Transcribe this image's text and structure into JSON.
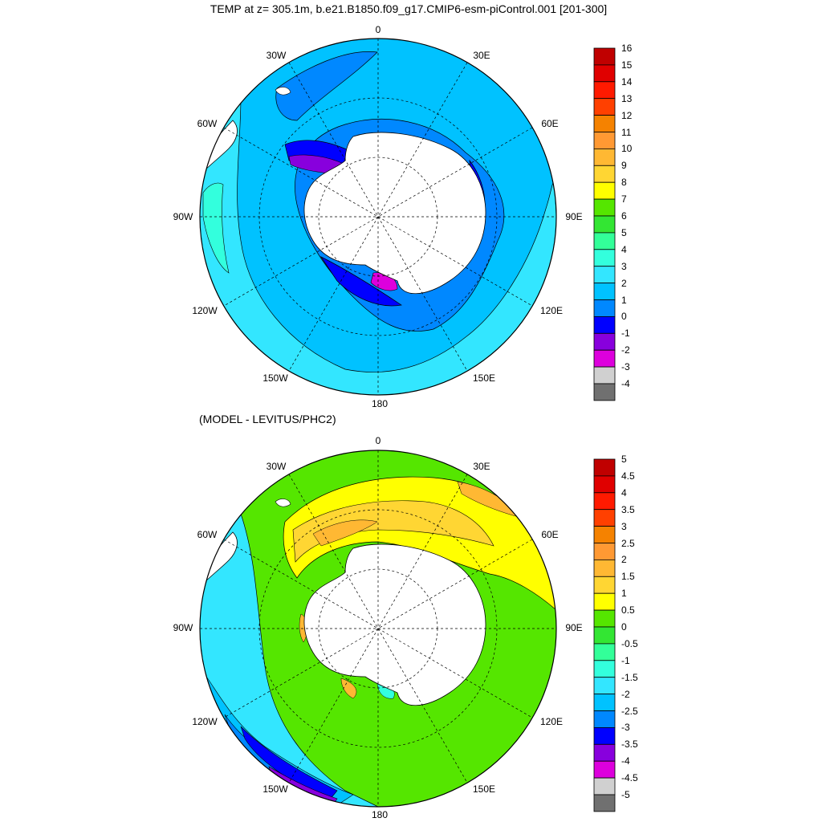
{
  "titles": {
    "top": "TEMP at z= 305.1m, b.e21.B1850.f09_g17.CMIP6-esm-piControl.001 [201-300]",
    "bottom": "(MODEL - LEVITUS/PHC2)"
  },
  "map_labels": {
    "lon_0": "0",
    "lon_30e": "30E",
    "lon_60e": "60E",
    "lon_90e": "90E",
    "lon_120e": "120E",
    "lon_150e": "150E",
    "lon_180": "180",
    "lon_150w": "150W",
    "lon_120w": "120W",
    "lon_90w": "90W",
    "lon_60w": "60W",
    "lon_30w": "30W"
  },
  "colorbar_top": {
    "labels": [
      "16",
      "15",
      "14",
      "13",
      "12",
      "11",
      "10",
      "9",
      "8",
      "7",
      "6",
      "5",
      "4",
      "3",
      "2",
      "1",
      "0",
      "-1",
      "-2",
      "-3",
      "-4"
    ],
    "colors": [
      "#c00000",
      "#e00000",
      "#ff1a00",
      "#ff4000",
      "#f58200",
      "#ff9933",
      "#ffb833",
      "#ffd633",
      "#ffff00",
      "#55e600",
      "#33e633",
      "#33ff99",
      "#33ffdd",
      "#33e6ff",
      "#00c2ff",
      "#0088ff",
      "#0000ff",
      "#8800dd",
      "#dd00dd",
      "#d0d0d0",
      "#707070"
    ]
  },
  "colorbar_bottom": {
    "labels": [
      "5",
      "4.5",
      "4",
      "3.5",
      "3",
      "2.5",
      "2",
      "1.5",
      "1",
      "0.5",
      "0",
      "-0.5",
      "-1",
      "-1.5",
      "-2",
      "-2.5",
      "-3",
      "-3.5",
      "-4",
      "-4.5",
      "-5"
    ],
    "colors": [
      "#c00000",
      "#e00000",
      "#ff1a00",
      "#ff4000",
      "#f58200",
      "#ff9933",
      "#ffb833",
      "#ffd633",
      "#ffff00",
      "#55e600",
      "#33e633",
      "#33ff99",
      "#33ffdd",
      "#33e6ff",
      "#00c2ff",
      "#0088ff",
      "#0000ff",
      "#8800dd",
      "#dd00dd",
      "#d0d0d0",
      "#707070"
    ]
  },
  "colors": {
    "land": "#ffffff",
    "coast": "#000000",
    "grid": "#000000"
  }
}
